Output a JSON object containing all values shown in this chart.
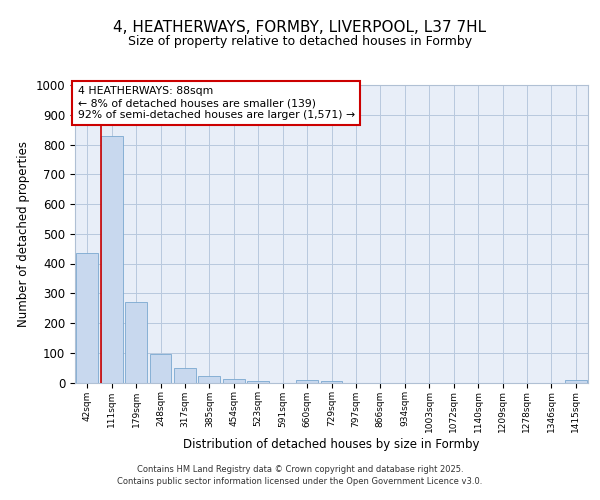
{
  "title1": "4, HEATHERWAYS, FORMBY, LIVERPOOL, L37 7HL",
  "title2": "Size of property relative to detached houses in Formby",
  "xlabel": "Distribution of detached houses by size in Formby",
  "ylabel": "Number of detached properties",
  "bar_labels": [
    "42sqm",
    "111sqm",
    "179sqm",
    "248sqm",
    "317sqm",
    "385sqm",
    "454sqm",
    "523sqm",
    "591sqm",
    "660sqm",
    "729sqm",
    "797sqm",
    "866sqm",
    "934sqm",
    "1003sqm",
    "1072sqm",
    "1140sqm",
    "1209sqm",
    "1278sqm",
    "1346sqm",
    "1415sqm"
  ],
  "bar_values": [
    435,
    830,
    270,
    95,
    48,
    22,
    12,
    5,
    0,
    8,
    5,
    0,
    0,
    0,
    0,
    0,
    0,
    0,
    0,
    0,
    8
  ],
  "bar_color": "#c8d8ee",
  "bar_edge_color": "#7aa8d0",
  "annotation_title": "4 HEATHERWAYS: 88sqm",
  "annotation_line1": "← 8% of detached houses are smaller (139)",
  "annotation_line2": "92% of semi-detached houses are larger (1,571) →",
  "annotation_box_color": "#ffffff",
  "annotation_box_edge": "#cc0000",
  "vline_color": "#cc0000",
  "vline_x_index": 1,
  "ylim": [
    0,
    1000
  ],
  "yticks": [
    0,
    100,
    200,
    300,
    400,
    500,
    600,
    700,
    800,
    900,
    1000
  ],
  "footer1": "Contains HM Land Registry data © Crown copyright and database right 2025.",
  "footer2": "Contains public sector information licensed under the Open Government Licence v3.0.",
  "bg_color": "#ffffff",
  "plot_bg_color": "#e8eef8"
}
